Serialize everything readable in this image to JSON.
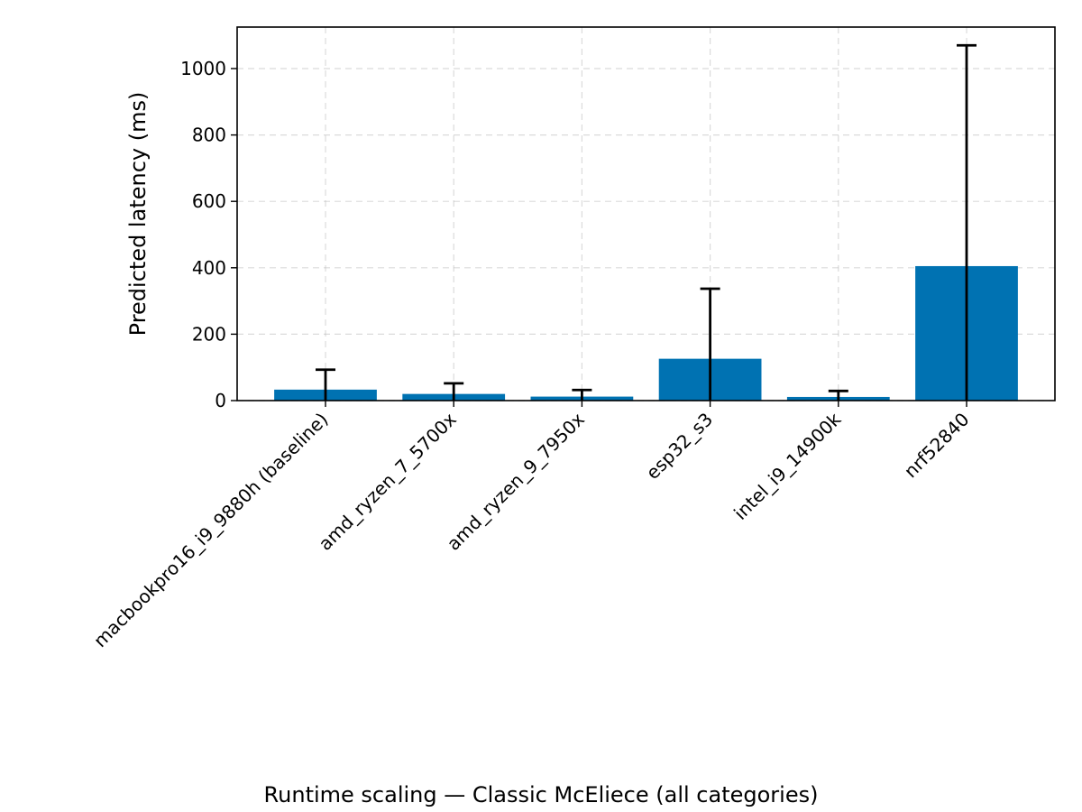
{
  "chart_data": {
    "type": "bar",
    "title": "",
    "caption": "Runtime scaling — Classic McEliece (all categories)",
    "xlabel": "",
    "ylabel": "Predicted latency (ms)",
    "ylim": [
      0,
      1125
    ],
    "yticks": [
      0,
      200,
      400,
      600,
      800,
      1000
    ],
    "grid": true,
    "legend": "none",
    "bar_color": "#0072b2",
    "error_color": "#000000",
    "categories": [
      "macbookpro16_i9_9880h (baseline)",
      "amd_ryzen_7_5700x",
      "amd_ryzen_9_7950x",
      "esp32_s3",
      "intel_i9_14900k",
      "nrf52840"
    ],
    "values": [
      33,
      20,
      12,
      126,
      11,
      405
    ],
    "error_upper": [
      93,
      52,
      32,
      337,
      29,
      1070
    ],
    "error_lower": [
      0,
      0,
      0,
      0,
      0,
      0
    ]
  }
}
